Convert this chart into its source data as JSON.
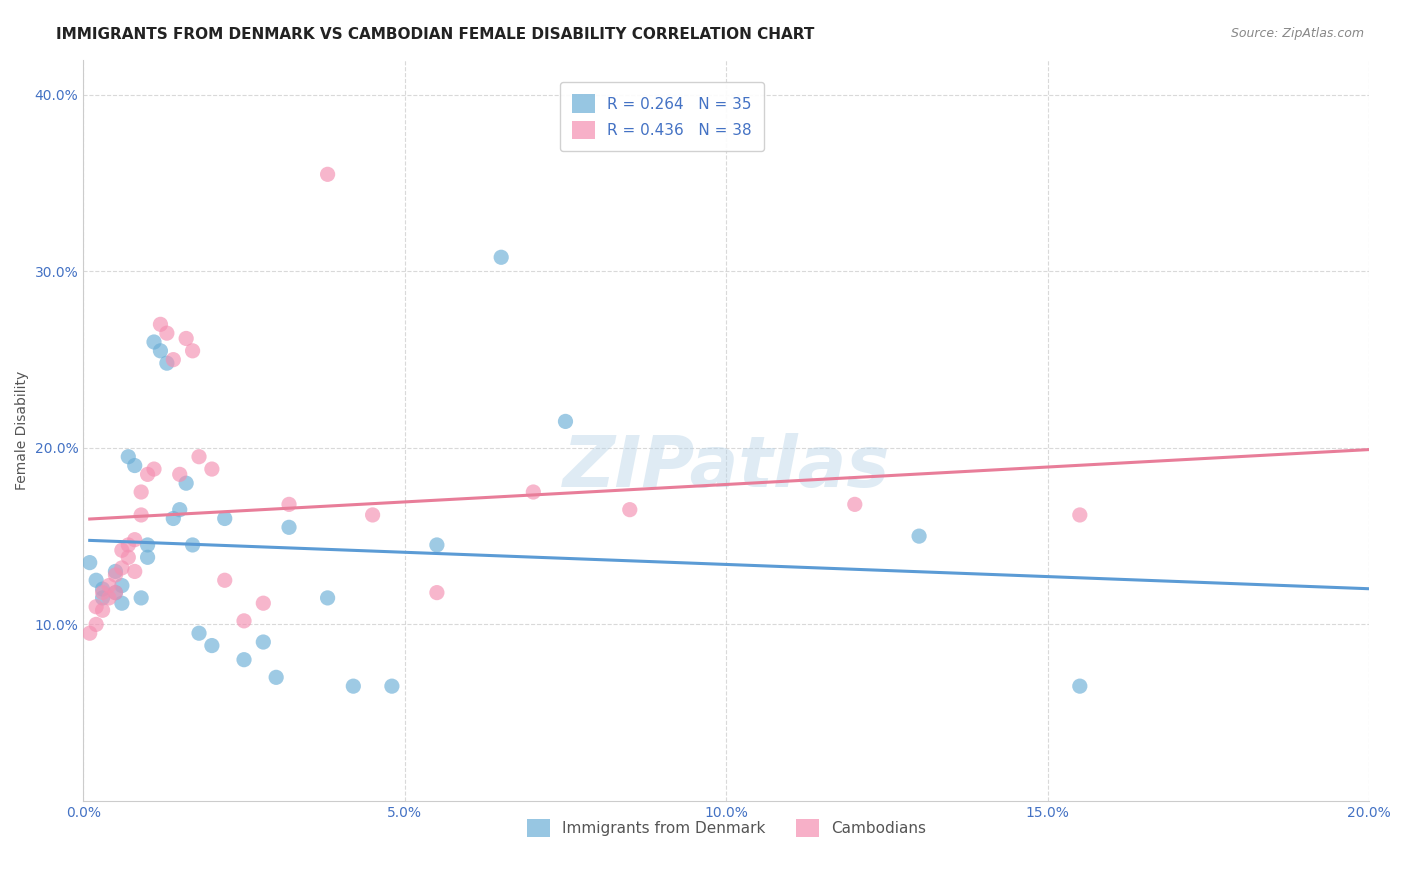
{
  "title": "IMMIGRANTS FROM DENMARK VS CAMBODIAN FEMALE DISABILITY CORRELATION CHART",
  "source": "Source: ZipAtlas.com",
  "xlabel_bottom": "",
  "ylabel": "Female Disability",
  "watermark": "ZIPatlas",
  "xlim": [
    0.0,
    0.2
  ],
  "ylim": [
    0.0,
    0.42
  ],
  "xticks": [
    0.0,
    0.05,
    0.1,
    0.15,
    0.2
  ],
  "xtick_labels": [
    "0.0%",
    "5.0%",
    "10.0%",
    "15.0%",
    "20.0%"
  ],
  "yticks": [
    0.1,
    0.2,
    0.3,
    0.4
  ],
  "ytick_labels": [
    "10.0%",
    "20.0%",
    "30.0%",
    "40.0%"
  ],
  "legend_labels": [
    "Immigrants from Denmark",
    "Cambodians"
  ],
  "R_denmark": 0.264,
  "N_denmark": 35,
  "R_cambodian": 0.436,
  "N_cambodian": 38,
  "denmark_color": "#6baed6",
  "cambodian_color": "#f48fb1",
  "denmark_line_color": "#5b9bd5",
  "cambodian_line_color": "#e87d99",
  "trend_line_dashed_color": "#b0b0b0",
  "background_color": "#ffffff",
  "grid_color": "#d0d0d0",
  "denmark_scatter_x": [
    0.001,
    0.002,
    0.003,
    0.003,
    0.005,
    0.005,
    0.006,
    0.006,
    0.007,
    0.008,
    0.009,
    0.01,
    0.01,
    0.011,
    0.012,
    0.013,
    0.014,
    0.015,
    0.016,
    0.017,
    0.018,
    0.02,
    0.022,
    0.025,
    0.028,
    0.03,
    0.032,
    0.038,
    0.042,
    0.048,
    0.055,
    0.065,
    0.075,
    0.13,
    0.155
  ],
  "denmark_scatter_y": [
    0.135,
    0.125,
    0.12,
    0.115,
    0.13,
    0.118,
    0.122,
    0.112,
    0.195,
    0.19,
    0.115,
    0.138,
    0.145,
    0.26,
    0.255,
    0.248,
    0.16,
    0.165,
    0.18,
    0.145,
    0.095,
    0.088,
    0.16,
    0.08,
    0.09,
    0.07,
    0.155,
    0.115,
    0.065,
    0.065,
    0.145,
    0.308,
    0.215,
    0.15,
    0.065
  ],
  "cambodian_scatter_x": [
    0.001,
    0.002,
    0.002,
    0.003,
    0.003,
    0.004,
    0.004,
    0.005,
    0.005,
    0.006,
    0.006,
    0.007,
    0.007,
    0.008,
    0.008,
    0.009,
    0.009,
    0.01,
    0.011,
    0.012,
    0.013,
    0.014,
    0.015,
    0.016,
    0.017,
    0.018,
    0.02,
    0.022,
    0.025,
    0.028,
    0.032,
    0.038,
    0.045,
    0.055,
    0.07,
    0.085,
    0.12,
    0.155
  ],
  "cambodian_scatter_y": [
    0.095,
    0.1,
    0.11,
    0.118,
    0.108,
    0.122,
    0.115,
    0.128,
    0.118,
    0.132,
    0.142,
    0.145,
    0.138,
    0.13,
    0.148,
    0.162,
    0.175,
    0.185,
    0.188,
    0.27,
    0.265,
    0.25,
    0.185,
    0.262,
    0.255,
    0.195,
    0.188,
    0.125,
    0.102,
    0.112,
    0.168,
    0.355,
    0.162,
    0.118,
    0.175,
    0.165,
    0.168,
    0.162
  ],
  "title_fontsize": 11,
  "axis_label_fontsize": 10,
  "tick_fontsize": 10,
  "legend_fontsize": 11
}
